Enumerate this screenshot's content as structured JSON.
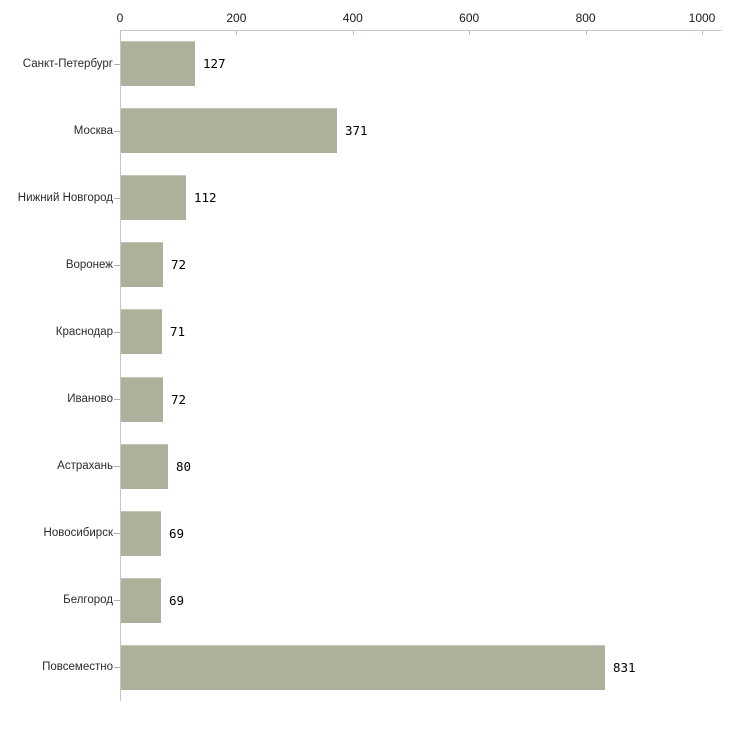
{
  "chart_data": {
    "type": "bar",
    "orientation": "horizontal",
    "title": "",
    "xlabel": "",
    "ylabel": "",
    "categories": [
      "Санкт-Петербург",
      "Москва",
      "Нижний Новгород",
      "Воронеж",
      "Краснодар",
      "Иваново",
      "Астрахань",
      "Новосибирск",
      "Белгород",
      "Повсеместно"
    ],
    "values": [
      127,
      371,
      112,
      72,
      71,
      72,
      80,
      69,
      69,
      831
    ],
    "value_labels": [
      "127",
      "371",
      "112",
      "72",
      "71",
      "72",
      "80",
      "69",
      "69",
      "831"
    ],
    "xlim": [
      0,
      1000
    ],
    "x_ticks": [
      0,
      200,
      400,
      600,
      800,
      1000
    ],
    "x_tick_labels": [
      "0",
      "200",
      "400",
      "600",
      "800",
      "1000"
    ],
    "axis_position": "top",
    "grid": false,
    "legend": false,
    "colors": {
      "bar": "#abb19a",
      "bar_top_edge": "#c4c9b7",
      "axis_line": "#c6c6c6",
      "x_tick": "#c2c29a",
      "y_tick": "#b3b39c",
      "category_label": "#2b2b2b",
      "value_label": "#000000",
      "tick_label": "#1a1a1a",
      "background": "#ffffff"
    }
  }
}
